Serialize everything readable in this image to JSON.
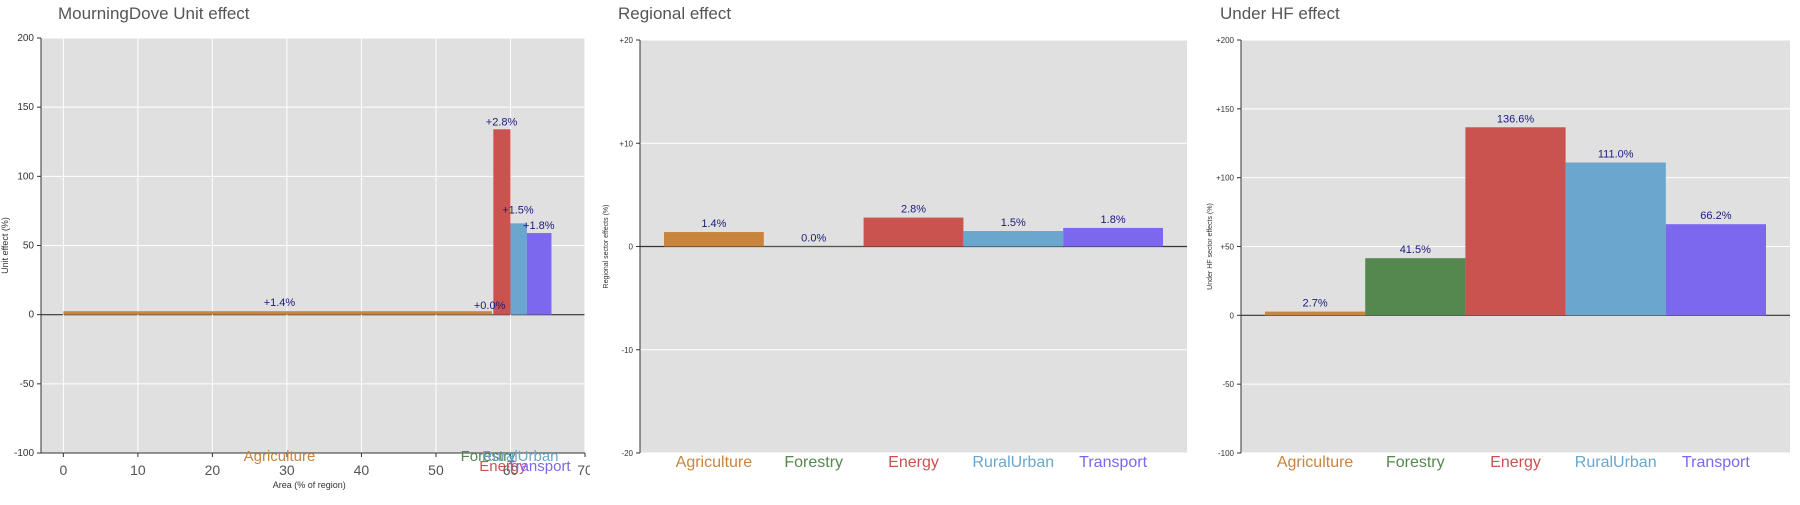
{
  "colors": {
    "Agriculture": "#C9843E",
    "Forestry": "#55884F",
    "Energy": "#CA5350",
    "RuralUrban": "#6AA6CE",
    "Transport": "#7B68EE",
    "panel_bg": "#E0E0E0",
    "value_label": "#1A1A7A"
  },
  "chart_data": [
    {
      "type": "bar",
      "title": "MourningDove Unit effect",
      "xlabel": "Area (% of region)",
      "ylabel": "Unit effect (%)",
      "xlim": [
        -3,
        70
      ],
      "ylim": [
        -100,
        200
      ],
      "xticks": [
        0,
        10,
        20,
        30,
        40,
        50,
        60,
        70
      ],
      "yticks": [
        -100,
        -50,
        0,
        50,
        100,
        150,
        200
      ],
      "categories": [
        "Agriculture",
        "Forestry",
        "Energy",
        "RuralUrban",
        "Transport"
      ],
      "bars": [
        {
          "category": "Agriculture",
          "x_start": 0,
          "x_end": 57.5,
          "value": 2.5,
          "label": "+1.4%"
        },
        {
          "category": "Forestry",
          "x_start": 57.5,
          "x_end": 57.7,
          "value": 0.5,
          "label": "+0.0%"
        },
        {
          "category": "Energy",
          "x_start": 57.7,
          "x_end": 60,
          "value": 134,
          "label": "+2.8%"
        },
        {
          "category": "RuralUrban",
          "x_start": 60,
          "x_end": 62.2,
          "value": 66,
          "label": "+1.5%"
        },
        {
          "category": "Transport",
          "x_start": 62.2,
          "x_end": 65.5,
          "value": 59,
          "label": "+1.8%"
        }
      ],
      "grid": true
    },
    {
      "type": "bar",
      "title": "Regional effect",
      "xlabel": "",
      "ylabel": "Regional sector effects (%)",
      "ylim": [
        -20,
        20
      ],
      "yticks": [
        -20,
        -10,
        0,
        10,
        20
      ],
      "ytick_labels": [
        "-20",
        "-10",
        "0",
        "+10",
        "+20"
      ],
      "categories": [
        "Agriculture",
        "Forestry",
        "Energy",
        "RuralUrban",
        "Transport"
      ],
      "values": [
        1.4,
        0.0,
        2.8,
        1.5,
        1.8
      ],
      "labels": [
        "1.4%",
        "0.0%",
        "2.8%",
        "1.5%",
        "1.8%"
      ],
      "grid": true
    },
    {
      "type": "bar",
      "title": "Under HF effect",
      "xlabel": "",
      "ylabel": "Under HF sector effects (%)",
      "ylim": [
        -100,
        200
      ],
      "yticks": [
        -100,
        -50,
        0,
        50,
        100,
        150,
        200
      ],
      "ytick_labels": [
        "-100",
        "-50",
        "0",
        "+50",
        "+100",
        "+150",
        "+200"
      ],
      "categories": [
        "Agriculture",
        "Forestry",
        "Energy",
        "RuralUrban",
        "Transport"
      ],
      "values": [
        2.7,
        41.5,
        136.6,
        111.0,
        66.2
      ],
      "labels": [
        "2.7%",
        "41.5%",
        "136.6%",
        "111.0%",
        "66.2%"
      ],
      "grid": true
    }
  ]
}
